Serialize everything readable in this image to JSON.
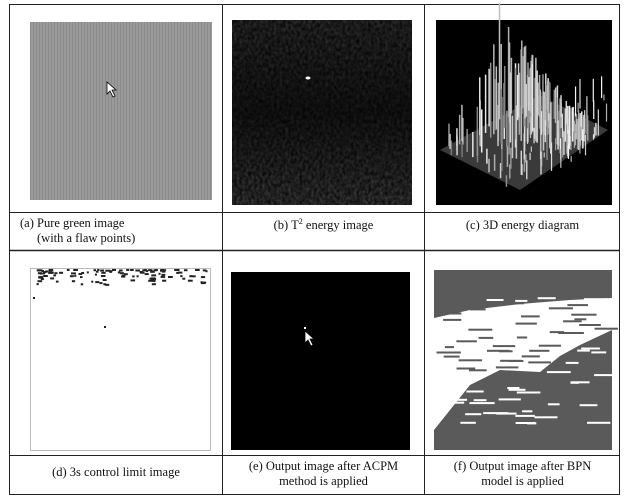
{
  "panels": [
    {
      "caption_lines": [
        "(a) Pure green image",
        "(with a flaw points)"
      ]
    },
    {
      "caption_parts": [
        "(b) T",
        "2",
        " energy image"
      ]
    },
    {
      "caption_lines": [
        "(c) 3D energy diagram"
      ]
    },
    {
      "caption_lines": [
        "(d) 3s control limit image"
      ]
    },
    {
      "caption_lines": [
        "(e) Output image after ACPM",
        "method is applied"
      ]
    },
    {
      "caption_lines": [
        "(f) Output image after BPN",
        "model is applied"
      ]
    }
  ]
}
